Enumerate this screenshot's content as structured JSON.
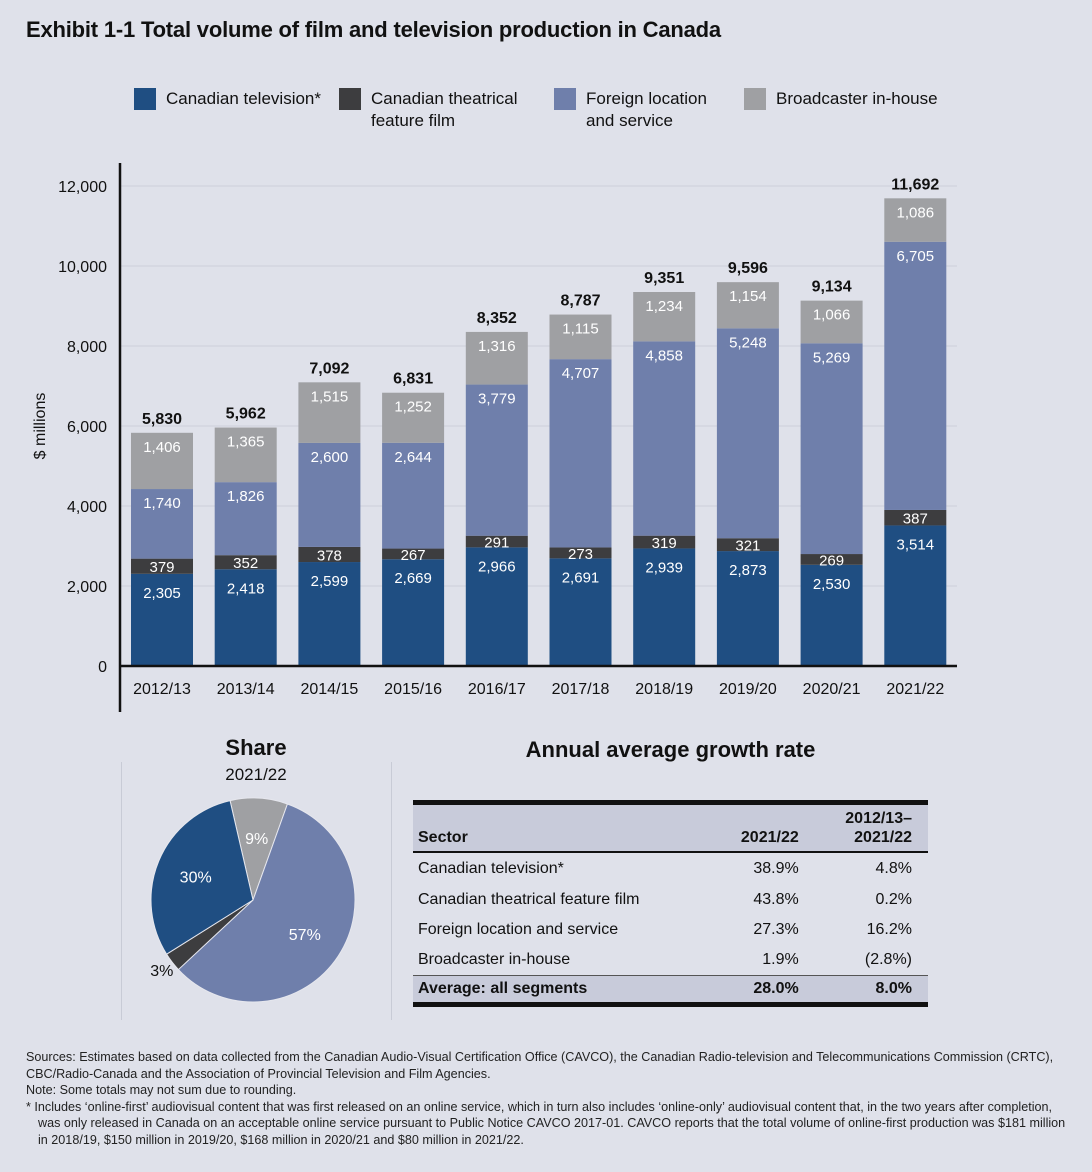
{
  "title": "Exhibit 1-1  Total volume of film and television production in Canada",
  "colors": {
    "canadian_tv": "#1f4e82",
    "theatrical": "#3d3d3f",
    "foreign": "#6f7fab",
    "inhouse": "#9fa0a3",
    "background": "#dfe1ea"
  },
  "legend": [
    {
      "label": "Canadian television*",
      "color": "#1f4e82"
    },
    {
      "label": "Canadian theatrical feature film",
      "color": "#3d3d3f"
    },
    {
      "label": "Foreign location and service",
      "color": "#6f7fab"
    },
    {
      "label": "Broadcaster in-house",
      "color": "#9fa0a3"
    }
  ],
  "chart_data": [
    {
      "type": "bar",
      "stacked": true,
      "ylabel": "$ millions",
      "ylim": [
        0,
        12000
      ],
      "yticks": [
        "0",
        "2,000",
        "4,000",
        "6,000",
        "8,000",
        "10,000",
        "12,000"
      ],
      "grid": true,
      "legend_position": "top",
      "categories": [
        "2012/13",
        "2013/14",
        "2014/15",
        "2015/16",
        "2016/17",
        "2017/18",
        "2018/19",
        "2019/20",
        "2020/21",
        "2021/22"
      ],
      "series": [
        {
          "name": "Canadian television*",
          "values": [
            2305,
            2418,
            2599,
            2669,
            2966,
            2691,
            2939,
            2873,
            2530,
            3514
          ],
          "labels": [
            "2,305",
            "2,418",
            "2,599",
            "2,669",
            "2,966",
            "2,691",
            "2,939",
            "2,873",
            "2,530",
            "3,514"
          ]
        },
        {
          "name": "Canadian theatrical feature film",
          "values": [
            379,
            352,
            378,
            267,
            291,
            273,
            319,
            321,
            269,
            387
          ],
          "labels": [
            "379",
            "352",
            "378",
            "267",
            "291",
            "273",
            "319",
            "321",
            "269",
            "387"
          ]
        },
        {
          "name": "Foreign location and service",
          "values": [
            1740,
            1826,
            2600,
            2644,
            3779,
            4707,
            4858,
            5248,
            5269,
            6705
          ],
          "labels": [
            "1,740",
            "1,826",
            "2,600",
            "2,644",
            "3,779",
            "4,707",
            "4,858",
            "5,248",
            "5,269",
            "6,705"
          ]
        },
        {
          "name": "Broadcaster in-house",
          "values": [
            1406,
            1365,
            1515,
            1252,
            1316,
            1115,
            1234,
            1154,
            1066,
            1086
          ],
          "labels": [
            "1,406",
            "1,365",
            "1,515",
            "1,252",
            "1,316",
            "1,115",
            "1,234",
            "1,154",
            "1,066",
            "1,086"
          ]
        }
      ],
      "totals": [
        "5,830",
        "5,962",
        "7,092",
        "6,831",
        "8,352",
        "8,787",
        "9,351",
        "9,596",
        "9,134",
        "11,692"
      ]
    },
    {
      "type": "pie",
      "title": "Share",
      "subtitle": "2021/22",
      "slices": [
        {
          "name": "Broadcaster in-house",
          "value": 9,
          "label": "9%"
        },
        {
          "name": "Foreign location and service",
          "value": 57,
          "label": "57%"
        },
        {
          "name": "Canadian theatrical feature film",
          "value": 3,
          "label": "3%"
        },
        {
          "name": "Canadian television*",
          "value": 30,
          "label": "30%"
        }
      ]
    }
  ],
  "growth": {
    "title": "Annual average growth rate",
    "headers": {
      "sector": "Sector",
      "col1": "2021/22",
      "col2a": "2012/13–",
      "col2b": "2021/22"
    },
    "rows": [
      {
        "sector": "Canadian television*",
        "v1": "38.9%",
        "v2": "4.8%"
      },
      {
        "sector": "Canadian theatrical feature film",
        "v1": "43.8%",
        "v2": "0.2%"
      },
      {
        "sector": "Foreign location and service",
        "v1": "27.3%",
        "v2": "16.2%"
      },
      {
        "sector": "Broadcaster in-house",
        "v1": "1.9%",
        "v2": "(2.8%)"
      }
    ],
    "average": {
      "sector": "Average: all segments",
      "v1": "28.0%",
      "v2": "8.0%"
    }
  },
  "notes": {
    "sources": "Sources: Estimates based on data collected from the Canadian Audio-Visual Certification Office (CAVCO), the Canadian Radio-television and Telecommunications Commission (CRTC), CBC/Radio-Canada and the Association of Provincial Television and Film Agencies.",
    "note": "Note: Some totals may not sum due to rounding.",
    "footnote": "* Includes ‘online-first’ audiovisual content that was first released on an online service, which in turn also includes ‘online-only’ audiovisual content that, in the two years after completion, was only released in Canada on an acceptable online service pursuant to Public Notice CAVCO 2017-01. CAVCO reports that the total volume of online-first production was $181 million in 2018/19, $150 million in 2019/20, $168 million in 2020/21 and $80 million in 2021/22."
  }
}
